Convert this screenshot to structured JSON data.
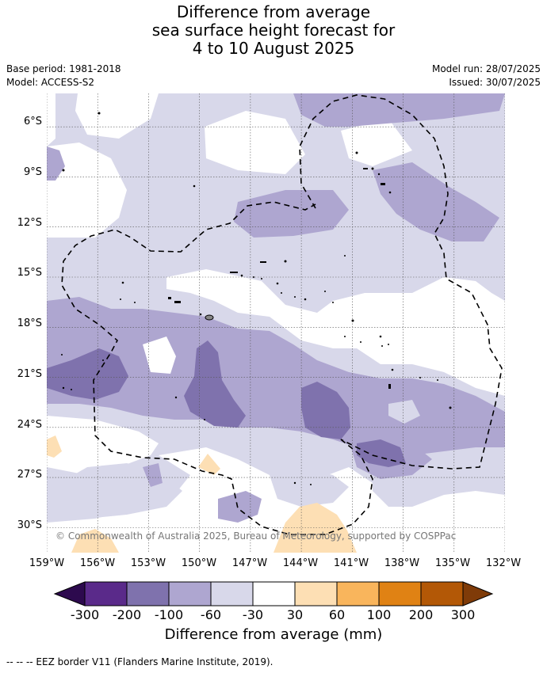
{
  "title": {
    "line1": "Difference from average",
    "line2": "sea surface height forecast for",
    "line3": "4 to 10 August 2025"
  },
  "meta": {
    "base_period": "Base period: 1981-2018",
    "model": "Model: ACCESS-S2",
    "model_run": "Model run: 28/07/2025",
    "issued": "Issued: 30/07/2025"
  },
  "map": {
    "lon_range": [
      -159,
      -132
    ],
    "lat_range": [
      -31.5,
      -4
    ],
    "lat_labels": [
      "6°S",
      "9°S",
      "12°S",
      "15°S",
      "18°S",
      "21°S",
      "24°S",
      "27°S",
      "30°S"
    ],
    "lon_labels": [
      "159°W",
      "156°W",
      "153°W",
      "150°W",
      "147°W",
      "144°W",
      "141°W",
      "138°W",
      "135°W",
      "132°W"
    ],
    "watermark": "© Commonwealth of Australia 2025, Bureau of Meteorology, supported by COSPPac",
    "gridlines": true
  },
  "colorbar": {
    "ticks": [
      "-300",
      "-200",
      "-100",
      "-60",
      "-30",
      "30",
      "60",
      "100",
      "200",
      "300"
    ],
    "colors": [
      "#2d0a4e",
      "#5a2a8a",
      "#7f72ad",
      "#aea6d0",
      "#d8d8ea",
      "#ffffff",
      "#fddfb4",
      "#f9b55c",
      "#e08214",
      "#b35806",
      "#7f3b08"
    ],
    "label": "Difference from average (mm)"
  },
  "footer": {
    "eez_note": "--  --  -- EEZ border V11 (Flanders Marine Institute, 2019)."
  },
  "colors": {
    "light_purple": "#d8d8ea",
    "mid_purple": "#aea6d0",
    "dark_purple": "#7f72ad",
    "light_orange": "#fddfb4"
  }
}
